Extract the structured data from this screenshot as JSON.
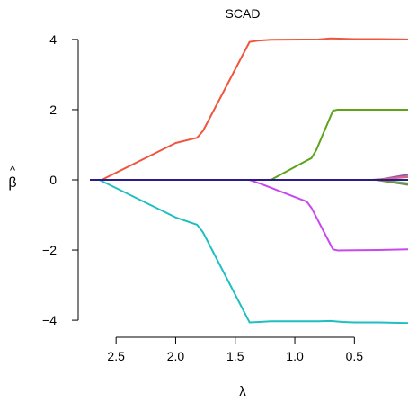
{
  "chart_data": {
    "type": "line",
    "title": "SCAD",
    "xlabel": "λ",
    "ylabel_hat": "^",
    "ylabel_sym": "β",
    "x_reversed": true,
    "xlim": [
      2.72,
      0.05
    ],
    "ylim": [
      -4.1,
      4.1
    ],
    "xticks": [
      2.5,
      2.0,
      1.5,
      1.0,
      0.5
    ],
    "xtick_labels": [
      "2.5",
      "2.0",
      "1.5",
      "1.0",
      "0.5"
    ],
    "yticks": [
      4,
      2,
      0,
      -2,
      -4
    ],
    "ytick_labels": [
      "4",
      "2",
      "0",
      "−2",
      "−4"
    ],
    "grid": false,
    "series": [
      {
        "color": "#F0553E",
        "points": [
          [
            2.72,
            0
          ],
          [
            2.62,
            0
          ],
          [
            2.0,
            1.05
          ],
          [
            1.82,
            1.2
          ],
          [
            1.77,
            1.4
          ],
          [
            1.38,
            3.93
          ],
          [
            1.3,
            3.97
          ],
          [
            1.2,
            3.99
          ],
          [
            0.8,
            4.0
          ],
          [
            0.7,
            4.03
          ],
          [
            0.6,
            4.02
          ],
          [
            0.5,
            4.01
          ],
          [
            0.3,
            4.01
          ],
          [
            0.05,
            4.0
          ]
        ]
      },
      {
        "color": "#1EBFC2",
        "points": [
          [
            2.72,
            0
          ],
          [
            2.64,
            0
          ],
          [
            2.0,
            -1.07
          ],
          [
            1.82,
            -1.28
          ],
          [
            1.77,
            -1.5
          ],
          [
            1.38,
            -4.06
          ],
          [
            1.3,
            -4.05
          ],
          [
            1.2,
            -4.03
          ],
          [
            0.8,
            -4.03
          ],
          [
            0.7,
            -4.02
          ],
          [
            0.6,
            -4.05
          ],
          [
            0.5,
            -4.06
          ],
          [
            0.3,
            -4.06
          ],
          [
            0.05,
            -4.08
          ]
        ]
      },
      {
        "color": "#5BA41A",
        "points": [
          [
            2.72,
            0
          ],
          [
            1.2,
            0
          ],
          [
            0.9,
            0.55
          ],
          [
            0.86,
            0.62
          ],
          [
            0.82,
            0.85
          ],
          [
            0.68,
            1.97
          ],
          [
            0.64,
            2.0
          ],
          [
            0.3,
            2.0
          ],
          [
            0.05,
            2.0
          ]
        ]
      },
      {
        "color": "#C748EE",
        "points": [
          [
            2.72,
            0
          ],
          [
            1.38,
            0
          ],
          [
            1.28,
            -0.12
          ],
          [
            0.9,
            -0.62
          ],
          [
            0.86,
            -0.8
          ],
          [
            0.68,
            -1.98
          ],
          [
            0.64,
            -2.01
          ],
          [
            0.3,
            -2.0
          ],
          [
            0.05,
            -1.98
          ]
        ]
      },
      {
        "color": "#8A5AA0",
        "points": [
          [
            2.72,
            0
          ],
          [
            0.3,
            0
          ],
          [
            0.05,
            0.15
          ]
        ]
      },
      {
        "color": "#B07838",
        "points": [
          [
            2.72,
            0
          ],
          [
            0.35,
            0
          ],
          [
            0.05,
            0.08
          ]
        ]
      },
      {
        "color": "#5AAA7A",
        "points": [
          [
            2.72,
            0
          ],
          [
            0.3,
            0
          ],
          [
            0.05,
            -0.1
          ]
        ]
      },
      {
        "color": "#7A8A40",
        "points": [
          [
            2.72,
            0
          ],
          [
            0.32,
            0
          ],
          [
            0.05,
            -0.14
          ]
        ]
      },
      {
        "color": "#E0609A",
        "points": [
          [
            2.72,
            0
          ],
          [
            0.3,
            0
          ],
          [
            0.05,
            0.1
          ]
        ]
      },
      {
        "color": "#2A1A8A",
        "points": [
          [
            2.72,
            0
          ],
          [
            0.05,
            0
          ]
        ]
      }
    ]
  }
}
